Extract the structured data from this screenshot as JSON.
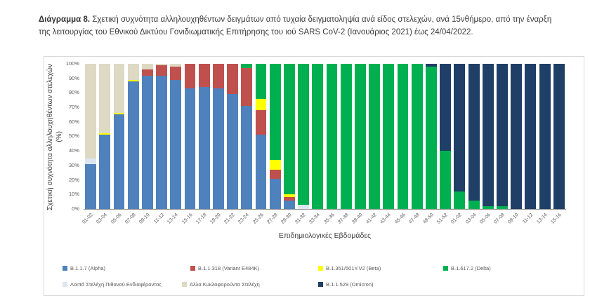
{
  "title": {
    "prefix": "Διάγραμμα 8.",
    "text": "Σχετική συχνότητα αλληλουχηθέντων δειγμάτων από τυχαία δειγματοληψία ανά είδος στελεχών, ανά 15νθήμερο, από την έναρξη της λειτουργίας του Εθνικού Δικτύου Γονιδιωματικής Επιτήρησης του ιού SARS CoV-2 (Ιανουάριος 2021) έως 24/04/2022."
  },
  "chart_data": {
    "type": "bar",
    "stacked": true,
    "xlabel": "Επιδημιολογικές Εβδομάδες",
    "ylabel": "Σχετική συχνότητα αλληλουχηθέντων στελεχών",
    "ylabel_unit": "(%)",
    "ylim": [
      0,
      100
    ],
    "grid": false,
    "legend_position": "bottom",
    "y_ticks": [
      "100%",
      "90%",
      "80%",
      "70%",
      "60%",
      "50%",
      "40%",
      "30%",
      "20%",
      "10%",
      "0%"
    ],
    "categories": [
      "01-02",
      "03-04",
      "05-06",
      "07-08",
      "09-10",
      "11-12",
      "13-14",
      "15-16",
      "17-18",
      "19-20",
      "21-22",
      "23-24",
      "25-26",
      "27-28",
      "29-30",
      "31-32",
      "33-34",
      "35-36",
      "37-38",
      "39-40",
      "41-42",
      "43-44",
      "45-46",
      "47-48",
      "49-50",
      "51-52",
      "01-02",
      "03-04",
      "05-06",
      "07-08",
      "09-10",
      "11-12",
      "13-14",
      "15-16"
    ],
    "stack_order": [
      0,
      1,
      2,
      4,
      3,
      5,
      6
    ],
    "series": [
      {
        "name": "B.1.1.7 (Alpha)",
        "color": "#4F81BD",
        "values": [
          31,
          51,
          65,
          88,
          92,
          92,
          89,
          83,
          84,
          83,
          79,
          71,
          51,
          21,
          6,
          0,
          0,
          0,
          0,
          0,
          0,
          0,
          0,
          0,
          0,
          0,
          0,
          0,
          0,
          0,
          0,
          0,
          0,
          0
        ]
      },
      {
        "name": "B.1.1.318 (Variant E484K)",
        "color": "#C0504D",
        "values": [
          0,
          0,
          0,
          0,
          4,
          7,
          9,
          17,
          16,
          17,
          21,
          26,
          17,
          6,
          2,
          0,
          0,
          0,
          0,
          0,
          0,
          0,
          0,
          0,
          0,
          0,
          0,
          0,
          0,
          0,
          0,
          0,
          0,
          0
        ]
      },
      {
        "name": "B.1.351/501Y.V2 (Beta)",
        "color": "#FFFF00",
        "values": [
          0,
          1,
          1,
          1,
          0,
          0,
          0,
          0,
          0,
          0,
          0,
          0,
          8,
          7,
          2,
          0,
          0,
          0,
          0,
          0,
          0,
          0,
          0,
          0,
          0,
          0,
          0,
          0,
          0,
          0,
          0,
          0,
          0,
          0
        ]
      },
      {
        "name": "B.1.617.2 (Delta)",
        "color": "#00B050",
        "values": [
          0,
          0,
          0,
          0,
          0,
          0,
          0,
          0,
          0,
          0,
          0,
          3,
          24,
          66,
          90,
          97,
          100,
          100,
          100,
          100,
          100,
          100,
          100,
          100,
          98,
          40,
          12,
          6,
          2,
          2,
          0,
          0,
          0,
          0
        ]
      },
      {
        "name": "Λοιπά Στελέχη Πιθανού Ενδιαφέροντος",
        "color": "#DCE6F1",
        "values": [
          4,
          0,
          0,
          0,
          0,
          0,
          0,
          0,
          0,
          0,
          0,
          0,
          0,
          0,
          0,
          3,
          0,
          0,
          0,
          0,
          0,
          0,
          0,
          0,
          0,
          0,
          0,
          0,
          0,
          0,
          0,
          0,
          0,
          0
        ]
      },
      {
        "name": "Άλλα Κυκλοφορούντα Στελέχη",
        "color": "#DDD9C3",
        "values": [
          65,
          48,
          34,
          11,
          4,
          1,
          2,
          0,
          0,
          0,
          0,
          0,
          0,
          0,
          0,
          0,
          0,
          0,
          0,
          0,
          0,
          0,
          0,
          0,
          0,
          0,
          0,
          0,
          0,
          0,
          0,
          0,
          0,
          0
        ]
      },
      {
        "name": "B.1.1.529 (Omicron)",
        "color": "#1F3F66",
        "values": [
          0,
          0,
          0,
          0,
          0,
          0,
          0,
          0,
          0,
          0,
          0,
          0,
          0,
          0,
          0,
          0,
          0,
          0,
          0,
          0,
          0,
          0,
          0,
          0,
          2,
          60,
          88,
          94,
          98,
          98,
          100,
          100,
          100,
          100
        ]
      }
    ]
  }
}
